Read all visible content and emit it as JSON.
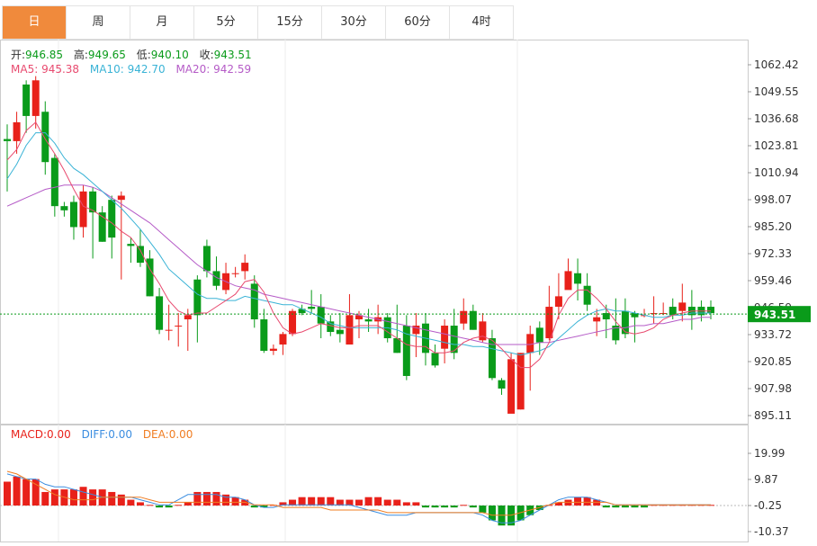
{
  "tabs": [
    "日",
    "周",
    "月",
    "5分",
    "15分",
    "30分",
    "60分",
    "4时"
  ],
  "active_tab": 0,
  "ohlc": {
    "open_label": "开:",
    "open": "946.85",
    "high_label": "高:",
    "high": "949.65",
    "low_label": "低:",
    "low": "940.10",
    "close_label": "收:",
    "close": "943.51"
  },
  "ma": {
    "ma5_label": "MA5:",
    "ma5": "945.38",
    "ma10_label": "MA10:",
    "ma10": "942.70",
    "ma20_label": "MA20:",
    "ma20": "942.59"
  },
  "macd": {
    "macd_label": "MACD:",
    "macd": "0.00",
    "diff_label": "DIFF:",
    "diff": "0.00",
    "dea_label": "DEA:",
    "dea": "0.00"
  },
  "current_price": "943.51",
  "colors": {
    "up": "#e8211a",
    "down": "#0a9b1a",
    "ma5": "#e84a6f",
    "ma10": "#3ab3d6",
    "ma20": "#b55bc7",
    "diff": "#3b8de0",
    "dea": "#f07d22",
    "accent": "#f08a3c"
  },
  "chart_data": [
    {
      "type": "candlestick",
      "y_ticks": [
        "1062.42",
        "1049.55",
        "1036.68",
        "1023.81",
        "1010.94",
        "998.07",
        "985.20",
        "972.33",
        "959.46",
        "946.59",
        "933.72",
        "920.85",
        "907.98",
        "895.11"
      ],
      "ylim": [
        895.11,
        1062.42
      ],
      "candles": [
        [
          1027,
          1026,
          1034,
          1002
        ],
        [
          1026,
          1035,
          1040,
          1020
        ],
        [
          1053,
          1038,
          1055,
          1030
        ],
        [
          1038,
          1055,
          1057,
          1032
        ],
        [
          1040,
          1016,
          1045,
          1010
        ],
        [
          1018,
          995,
          1020,
          990
        ],
        [
          995,
          993,
          997,
          990
        ],
        [
          997,
          985,
          1000,
          979
        ],
        [
          985,
          1002,
          1005,
          980
        ],
        [
          1002,
          992,
          1004,
          970
        ],
        [
          992,
          978,
          995,
          978
        ],
        [
          998,
          980,
          1000,
          970
        ],
        [
          998,
          1000,
          1002,
          960
        ],
        [
          977,
          976,
          980,
          968
        ],
        [
          976,
          968,
          984,
          966
        ],
        [
          970,
          952,
          974,
          952
        ],
        [
          952,
          936,
          956,
          934
        ],
        [
          936,
          936,
          948,
          931
        ],
        [
          938,
          938,
          944,
          928
        ],
        [
          941,
          943,
          946,
          926
        ],
        [
          960,
          943,
          962,
          930
        ],
        [
          976,
          964,
          979,
          961
        ],
        [
          964,
          957,
          971,
          955
        ],
        [
          955,
          963,
          968,
          953
        ],
        [
          963,
          963,
          966,
          961
        ],
        [
          964,
          968,
          972,
          960
        ],
        [
          958,
          941,
          962,
          937
        ],
        [
          941,
          926,
          946,
          925
        ],
        [
          926,
          927,
          929,
          924
        ],
        [
          929,
          934,
          935,
          924
        ],
        [
          934,
          945,
          946,
          933
        ],
        [
          946,
          944,
          948,
          943
        ],
        [
          947,
          946,
          955,
          944
        ],
        [
          947,
          939,
          953,
          932
        ],
        [
          940,
          935,
          943,
          933
        ],
        [
          936,
          934,
          944,
          930
        ],
        [
          929,
          943,
          953,
          929
        ],
        [
          941,
          943,
          945,
          932
        ],
        [
          941,
          940,
          946,
          935
        ],
        [
          940,
          942,
          948,
          934
        ],
        [
          942,
          932,
          944,
          930
        ],
        [
          932,
          925,
          948,
          925
        ],
        [
          938,
          914,
          943,
          912
        ],
        [
          934,
          938,
          944,
          923
        ],
        [
          939,
          925,
          944,
          919
        ],
        [
          925,
          919,
          929,
          918
        ],
        [
          927,
          938,
          941,
          920
        ],
        [
          938,
          925,
          946,
          922
        ],
        [
          939,
          945,
          951,
          936
        ],
        [
          945,
          936,
          948,
          936
        ],
        [
          931,
          940,
          944,
          930
        ],
        [
          932,
          913,
          936,
          912
        ],
        [
          912,
          908,
          913,
          905
        ],
        [
          896,
          922,
          925,
          905
        ],
        [
          898,
          925,
          925,
          898
        ],
        [
          925,
          934,
          938,
          907
        ],
        [
          937,
          930,
          940,
          924
        ],
        [
          932,
          947,
          957,
          931
        ],
        [
          947,
          952,
          963,
          941
        ],
        [
          955,
          964,
          970,
          960
        ],
        [
          963,
          958,
          970,
          950
        ],
        [
          957,
          948,
          963,
          945
        ],
        [
          940,
          942,
          946,
          933
        ],
        [
          944,
          941,
          948,
          932
        ],
        [
          938,
          931,
          951,
          929
        ],
        [
          945,
          934,
          951,
          932
        ],
        [
          944,
          942,
          945,
          930
        ],
        [
          943,
          943,
          946,
          942
        ],
        [
          944,
          944,
          952,
          939
        ],
        [
          944,
          944,
          949,
          943
        ],
        [
          947,
          943,
          951,
          941
        ],
        [
          945,
          949,
          958,
          940
        ],
        [
          947,
          943,
          955,
          936
        ],
        [
          947,
          943,
          950,
          940
        ],
        [
          947,
          944,
          950,
          941
        ]
      ],
      "ma5": [
        1017,
        1022,
        1031,
        1035,
        1027,
        1020,
        1012,
        1003,
        995,
        993,
        990,
        987,
        983,
        980,
        974,
        965,
        958,
        950,
        945,
        943,
        944,
        944,
        947,
        950,
        953,
        959,
        960,
        954,
        944,
        937,
        934,
        935,
        937,
        939,
        938,
        937,
        937,
        938,
        938,
        938,
        935,
        932,
        929,
        928,
        928,
        925,
        925,
        926,
        930,
        932,
        933,
        931,
        927,
        922,
        918,
        918,
        922,
        930,
        943,
        951,
        955,
        955,
        951,
        946,
        940,
        935,
        934,
        935,
        937,
        941,
        943,
        944,
        945,
        945,
        945
      ],
      "ma10": [
        1008,
        1015,
        1024,
        1030,
        1030,
        1025,
        1018,
        1013,
        1010,
        1006,
        1002,
        998,
        994,
        989,
        984,
        978,
        972,
        965,
        961,
        957,
        953,
        951,
        951,
        950,
        950,
        952,
        951,
        950,
        949,
        948,
        948,
        946,
        944,
        942,
        939,
        938,
        937,
        937,
        937,
        937,
        937,
        936,
        934,
        933,
        932,
        931,
        930,
        929,
        929,
        928,
        928,
        927,
        926,
        925,
        924,
        925,
        926,
        928,
        932,
        936,
        940,
        943,
        945,
        946,
        945,
        945,
        944,
        943,
        942,
        942,
        943,
        943,
        944,
        944,
        944
      ],
      "ma20": [
        995,
        997,
        999,
        1001,
        1003,
        1004,
        1005,
        1005,
        1005,
        1004,
        1002,
        999,
        996,
        993,
        990,
        987,
        983,
        979,
        975,
        971,
        967,
        964,
        961,
        959,
        957,
        956,
        955,
        953,
        952,
        951,
        950,
        949,
        948,
        947,
        946,
        945,
        944,
        943,
        942,
        941,
        940,
        939,
        938,
        937,
        936,
        935,
        934,
        933,
        932,
        931,
        930,
        929,
        929,
        929,
        929,
        929,
        930,
        930,
        931,
        932,
        933,
        934,
        935,
        936,
        937,
        937,
        938,
        938,
        939,
        939,
        940,
        941,
        941,
        942,
        942
      ]
    },
    {
      "type": "bar",
      "y_ticks": [
        "19.99",
        "9.87",
        "-0.25",
        "-10.37"
      ],
      "ylim": [
        -10.37,
        19.99
      ],
      "hist": [
        9,
        11,
        10,
        10,
        5,
        6,
        6,
        6,
        7,
        6,
        6,
        5,
        4,
        2,
        1,
        0,
        -1,
        -1,
        0,
        1,
        5,
        5,
        5,
        4,
        3,
        2,
        -1,
        -1,
        0,
        1,
        2,
        3,
        3,
        3,
        3,
        2,
        2,
        2,
        3,
        3,
        2,
        2,
        1,
        1,
        -1,
        -1,
        -1,
        -1,
        0,
        -1,
        -3,
        -6,
        -8,
        -8,
        -6,
        -4,
        -2,
        0,
        1,
        2,
        3,
        3,
        2,
        -1,
        -1,
        -1,
        -1,
        -1,
        0,
        0,
        0,
        0,
        0,
        0,
        0
      ],
      "diff": [
        12,
        11,
        10,
        10,
        8,
        7,
        7,
        6,
        5,
        4,
        3,
        3,
        3,
        3,
        2,
        1,
        0,
        0,
        2,
        4,
        4,
        4,
        4,
        3,
        3,
        2,
        0,
        -1,
        -1,
        0,
        0,
        0,
        0,
        0,
        0,
        0,
        0,
        -1,
        -2,
        -3,
        -4,
        -4,
        -4,
        -3,
        -3,
        -3,
        -3,
        -3,
        -3,
        -3,
        -4,
        -6,
        -7,
        -7,
        -6,
        -4,
        -2,
        0,
        2,
        3,
        3,
        3,
        2,
        1,
        0,
        0,
        0,
        0,
        0,
        0,
        0,
        0,
        0,
        0,
        0
      ],
      "dea": [
        13,
        12,
        10,
        8,
        6,
        4,
        3,
        2,
        2,
        2,
        3,
        3,
        3,
        3,
        3,
        2,
        1,
        1,
        1,
        1,
        1,
        1,
        1,
        1,
        1,
        1,
        0,
        0,
        0,
        -1,
        -1,
        -1,
        -1,
        -1,
        -2,
        -2,
        -2,
        -2,
        -2,
        -2,
        -3,
        -3,
        -3,
        -3,
        -3,
        -3,
        -3,
        -3,
        -3,
        -3,
        -3,
        -4,
        -4,
        -4,
        -3,
        -2,
        -1,
        0,
        1,
        1,
        1,
        1,
        1,
        1,
        0,
        0,
        0,
        0,
        0,
        0,
        0,
        0,
        0,
        0,
        0
      ]
    }
  ]
}
